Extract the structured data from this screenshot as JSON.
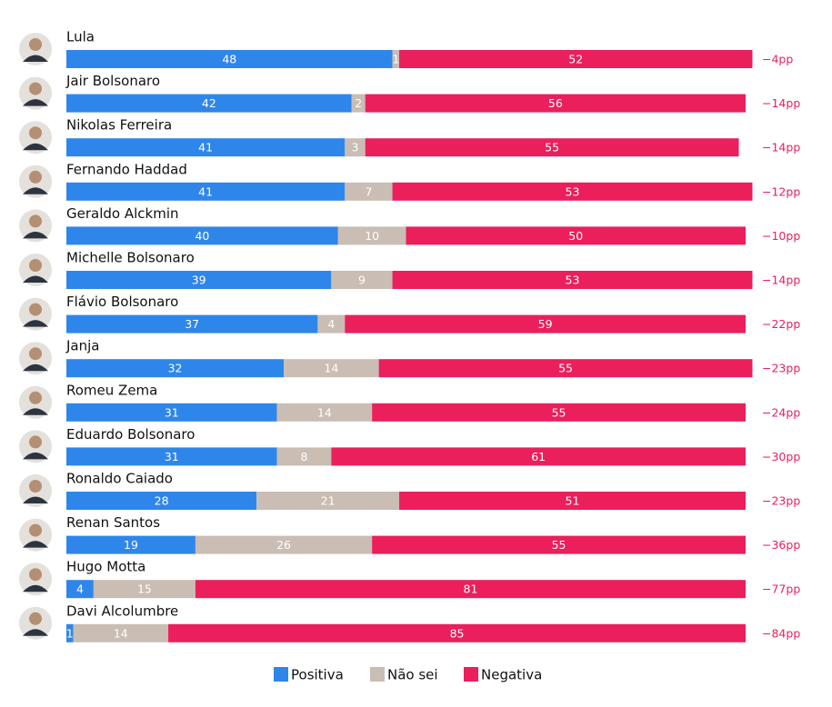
{
  "chart_data": {
    "type": "stacked_bar_horizontal",
    "categories": [
      "Lula",
      "Jair Bolsonaro",
      "Nikolas Ferreira",
      "Fernando Haddad",
      "Geraldo Alckmin",
      "Michelle Bolsonaro",
      "Flávio Bolsonaro",
      "Janja",
      "Romeu Zema",
      "Eduardo Bolsonaro",
      "Ronaldo Caiado",
      "Renan Santos",
      "Hugo Motta",
      "Davi Alcolumbre"
    ],
    "series": [
      {
        "name": "Positiva",
        "color": "#2f86ea",
        "values": [
          48,
          42,
          41,
          41,
          40,
          39,
          37,
          32,
          31,
          31,
          28,
          19,
          4,
          1
        ]
      },
      {
        "name": "Não sei",
        "color": "#c9bdb4",
        "values": [
          1,
          2,
          3,
          7,
          10,
          9,
          4,
          14,
          14,
          8,
          21,
          26,
          15,
          14
        ]
      },
      {
        "name": "Negativa",
        "color": "#ea1f5b",
        "values": [
          52,
          56,
          55,
          53,
          50,
          53,
          59,
          55,
          55,
          61,
          51,
          55,
          81,
          85
        ]
      }
    ],
    "annotations": [
      "−4pp",
      "−14pp",
      "−14pp",
      "−12pp",
      "−10pp",
      "−14pp",
      "−22pp",
      "−23pp",
      "−24pp",
      "−30pp",
      "−23pp",
      "−36pp",
      "−77pp",
      "−84pp"
    ],
    "annotation_color": "#ea1f5b",
    "xlim": [
      0,
      100
    ]
  }
}
